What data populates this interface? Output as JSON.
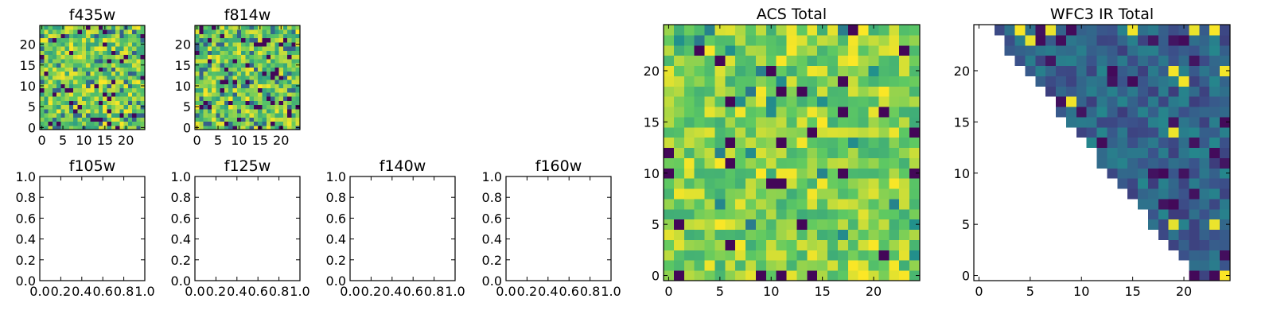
{
  "figure": {
    "background": "#ffffff"
  },
  "colormap": {
    "name": "viridis",
    "stops": [
      "#440154",
      "#3b528b",
      "#21918c",
      "#5ec962",
      "#fde725"
    ]
  },
  "chart_data": [
    {
      "type": "heatmap",
      "title": "f435w",
      "x_ticks": [
        "0",
        "5",
        "10",
        "15",
        "20"
      ],
      "y_ticks": [
        "0",
        "5",
        "10",
        "15",
        "20"
      ],
      "xlim": [
        -0.5,
        24.5
      ],
      "ylim": [
        -0.5,
        24.5
      ],
      "grid_size": [
        25,
        25
      ],
      "seed": 11,
      "pattern": "speckle"
    },
    {
      "type": "heatmap",
      "title": "f814w",
      "x_ticks": [
        "0",
        "5",
        "10",
        "15",
        "20"
      ],
      "y_ticks": [
        "0",
        "5",
        "10",
        "15",
        "20"
      ],
      "xlim": [
        -0.5,
        24.5
      ],
      "ylim": [
        -0.5,
        24.5
      ],
      "grid_size": [
        25,
        25
      ],
      "seed": 29,
      "pattern": "speckle"
    },
    {
      "type": "empty",
      "title": "f105w",
      "x_ticks": [
        "0.0",
        "0.2",
        "0.4",
        "0.6",
        "0.8",
        "1.0"
      ],
      "y_ticks": [
        "0.0",
        "0.2",
        "0.4",
        "0.6",
        "0.8",
        "1.0"
      ],
      "xlim": [
        0,
        1
      ],
      "ylim": [
        0,
        1
      ]
    },
    {
      "type": "empty",
      "title": "f125w",
      "x_ticks": [
        "0.0",
        "0.2",
        "0.4",
        "0.6",
        "0.8",
        "1.0"
      ],
      "y_ticks": [
        "0.0",
        "0.2",
        "0.4",
        "0.6",
        "0.8",
        "1.0"
      ],
      "xlim": [
        0,
        1
      ],
      "ylim": [
        0,
        1
      ]
    },
    {
      "type": "empty",
      "title": "f140w",
      "x_ticks": [
        "0.0",
        "0.2",
        "0.4",
        "0.6",
        "0.8",
        "1.0"
      ],
      "y_ticks": [
        "0.0",
        "0.2",
        "0.4",
        "0.6",
        "0.8",
        "1.0"
      ],
      "xlim": [
        0,
        1
      ],
      "ylim": [
        0,
        1
      ]
    },
    {
      "type": "empty",
      "title": "f160w",
      "x_ticks": [
        "0.0",
        "0.2",
        "0.4",
        "0.6",
        "0.8",
        "1.0"
      ],
      "y_ticks": [
        "0.0",
        "0.2",
        "0.4",
        "0.6",
        "0.8",
        "1.0"
      ],
      "xlim": [
        0,
        1
      ],
      "ylim": [
        0,
        1
      ]
    },
    {
      "type": "heatmap",
      "title": "ACS Total",
      "x_ticks": [
        "0",
        "5",
        "10",
        "15",
        "20"
      ],
      "y_ticks": [
        "0",
        "5",
        "10",
        "15",
        "20"
      ],
      "xlim": [
        -0.5,
        24.5
      ],
      "ylim": [
        -0.5,
        24.5
      ],
      "grid_size": [
        25,
        25
      ],
      "seed": 47,
      "pattern": "bright"
    },
    {
      "type": "heatmap",
      "title": "WFC3 IR Total",
      "x_ticks": [
        "0",
        "5",
        "10",
        "15",
        "20"
      ],
      "y_ticks": [
        "0",
        "5",
        "10",
        "15",
        "20"
      ],
      "xlim": [
        -0.5,
        24.5
      ],
      "ylim": [
        -0.5,
        24.5
      ],
      "grid_size": [
        25,
        25
      ],
      "seed": 83,
      "pattern": "dark",
      "masked_region": "lower-left triangle (no data, left blank)"
    }
  ]
}
